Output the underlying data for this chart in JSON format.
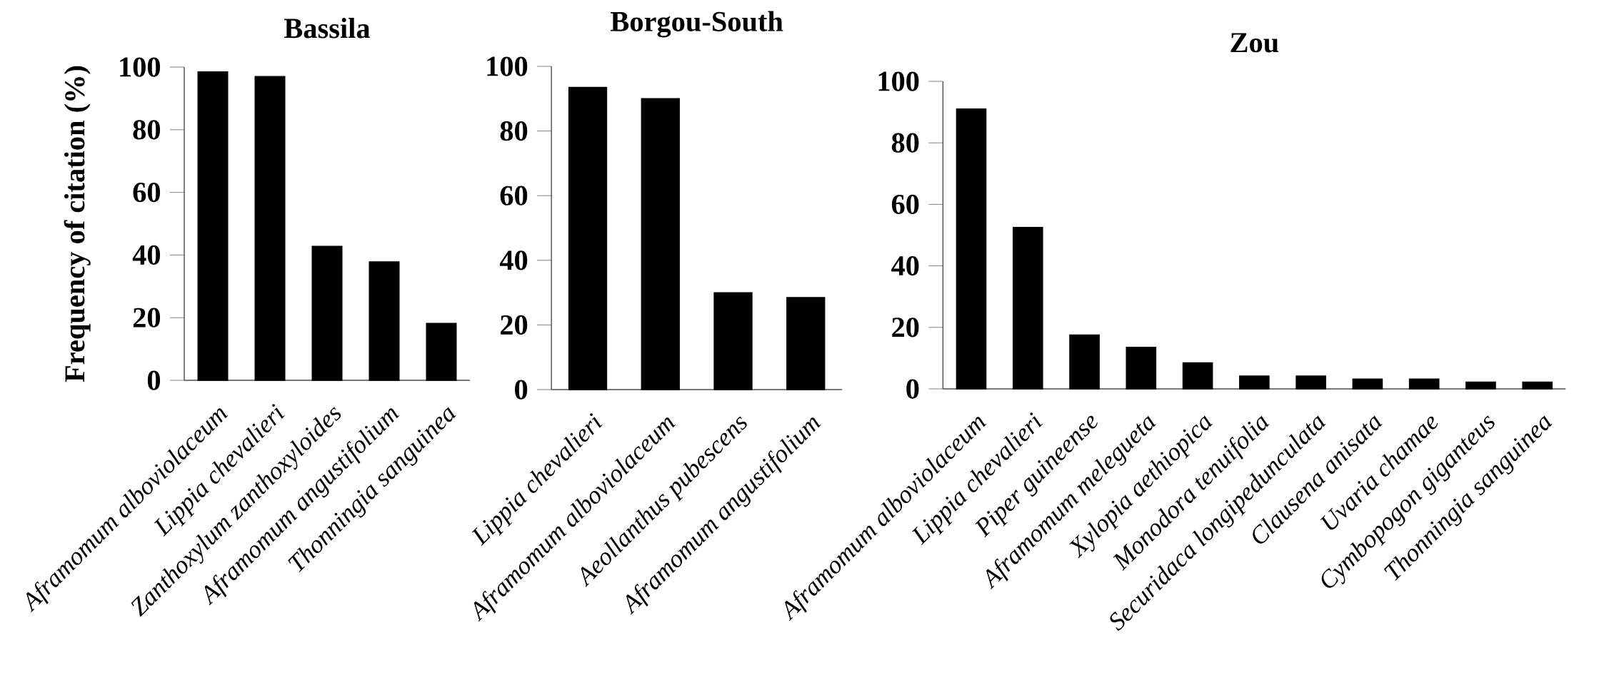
{
  "chart_data": [
    {
      "type": "bar",
      "title": "Bassila",
      "ylabel": "Frequency of citation (%)",
      "categories": [
        "Aframomum alboviolaceum",
        "Lippia chevalieri",
        "Zanthoxylum zanthoxyloides",
        "Aframomum angustifolium",
        "Thonningia sanguinea"
      ],
      "values": [
        98.5,
        97,
        42.8,
        37.8,
        18.2
      ],
      "color": "#000000",
      "ylim": [
        0,
        100
      ],
      "yticks": [
        0,
        20,
        40,
        60,
        80,
        100
      ]
    },
    {
      "type": "bar",
      "title": "Borgou-South",
      "categories": [
        "Lippia chevalieri",
        "Aframomum alboviolaceum",
        "Aeollanthus pubescens",
        "Aframomum angustifolium"
      ],
      "values": [
        93.5,
        90,
        30,
        28.5
      ],
      "color": "#000000",
      "ylim": [
        0,
        100
      ],
      "yticks": [
        0,
        20,
        40,
        60,
        80,
        100
      ]
    },
    {
      "type": "bar",
      "title": "Zou",
      "categories": [
        "Aframomum alboviolaceum",
        "Lippia chevalieri",
        "Piper guineense",
        "Aframomum melegueta",
        "Xylopia aethiopica",
        "Monodora tenuifolia",
        "Securidaca longipedunculata",
        "Clausena anisata",
        "Uvaria chamae",
        "Cymbopogon giganteus",
        "Thonningia sanguinea"
      ],
      "values": [
        91,
        52.5,
        17.5,
        13.5,
        8.5,
        4.2,
        4.2,
        3.2,
        3.2,
        2.2,
        2.2
      ],
      "color": "#000000",
      "ylim": [
        0,
        100
      ],
      "yticks": [
        0,
        20,
        40,
        60,
        80,
        100
      ]
    }
  ]
}
